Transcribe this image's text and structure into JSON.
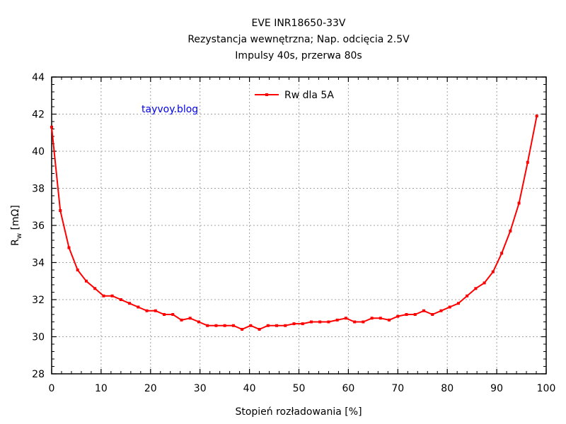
{
  "chart_data": {
    "type": "line",
    "title": [
      "EVE INR18650-33V",
      "Rezystancja wewnętrzna; Nap. odcięcia 2.5V",
      "Impulsy 40s, przerwa 80s"
    ],
    "xlabel": "Stopień rozładowania [%]",
    "ylabel_main": "R",
    "ylabel_sub": "w",
    "ylabel_unit": " [mΩ]",
    "xlim": [
      0,
      100
    ],
    "ylim": [
      28,
      44
    ],
    "xticks": [
      0,
      10,
      20,
      30,
      40,
      50,
      60,
      70,
      80,
      90,
      100
    ],
    "yticks": [
      28,
      30,
      32,
      34,
      36,
      38,
      40,
      42,
      44
    ],
    "grid": true,
    "legend_position": "top-center",
    "annotation": "tayvoy.blog",
    "series": [
      {
        "name": "Rw dla 5A",
        "color": "#ff0000",
        "x": [
          0,
          1.75,
          3.5,
          5.25,
          7.0,
          8.75,
          10.5,
          12.25,
          14.0,
          15.75,
          17.5,
          19.25,
          21.0,
          22.75,
          24.5,
          26.25,
          28.0,
          29.75,
          31.5,
          33.25,
          35.0,
          36.75,
          38.5,
          40.25,
          42.0,
          43.75,
          45.5,
          47.25,
          49.0,
          50.75,
          52.5,
          54.25,
          56.0,
          57.75,
          59.5,
          61.25,
          63.0,
          64.75,
          66.5,
          68.25,
          70.0,
          71.75,
          73.5,
          75.25,
          77.0,
          78.75,
          80.5,
          82.25,
          84.0,
          85.75,
          87.5,
          89.25,
          91.0,
          92.75,
          94.5,
          96.25,
          98.1
        ],
        "y": [
          41.3,
          36.8,
          34.8,
          33.6,
          33.0,
          32.6,
          32.2,
          32.2,
          32.0,
          31.8,
          31.6,
          31.4,
          31.4,
          31.2,
          31.2,
          30.9,
          31.0,
          30.8,
          30.6,
          30.6,
          30.6,
          30.6,
          30.4,
          30.6,
          30.4,
          30.6,
          30.6,
          30.6,
          30.7,
          30.7,
          30.8,
          30.8,
          30.8,
          30.9,
          31.0,
          30.8,
          30.8,
          31.0,
          31.0,
          30.9,
          31.1,
          31.2,
          31.2,
          31.4,
          31.2,
          31.4,
          31.6,
          31.8,
          32.2,
          32.6,
          32.9,
          33.5,
          34.5,
          35.7,
          37.2,
          39.4,
          41.9
        ]
      }
    ]
  }
}
